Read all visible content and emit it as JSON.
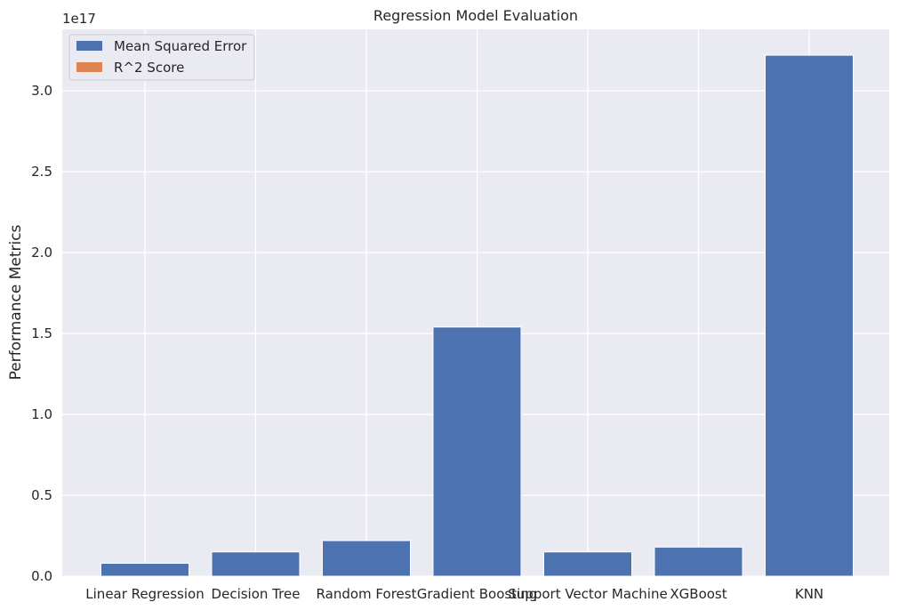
{
  "chart_data": {
    "type": "bar",
    "title": "Regression Model Evaluation",
    "xlabel": "",
    "ylabel": "Performance Metrics",
    "y_offset_text": "1e17",
    "y_scale_exponent": 17,
    "categories": [
      "Linear Regression",
      "Decision Tree",
      "Random Forest",
      "Gradient Boosting",
      "Support Vector Machine",
      "XGBoost",
      "KNN"
    ],
    "series": [
      {
        "name": "Mean Squared Error",
        "color": "#4c72b0",
        "values": [
          8000000000000000.0,
          1.5e+16,
          2.2e+16,
          1.54e+17,
          1.5e+16,
          1.8e+16,
          3.22e+17
        ]
      },
      {
        "name": "R^2 Score",
        "color": "#dd8452",
        "values": [
          0.6,
          0.5,
          0.7,
          0.8,
          0.4,
          0.7,
          0.3
        ]
      }
    ],
    "ylim": [
      0,
      3.38e+17
    ],
    "yticks": [
      0,
      5e+16,
      1e+17,
      1.5e+17,
      2e+17,
      2.5e+17,
      3e+17
    ],
    "ytick_labels": [
      "0.0",
      "0.5",
      "1.0",
      "1.5",
      "2.0",
      "2.5",
      "3.0"
    ],
    "grid": true,
    "legend_position": "top-left",
    "background_color": "#eaeaf2",
    "grid_color": "#ffffff"
  }
}
